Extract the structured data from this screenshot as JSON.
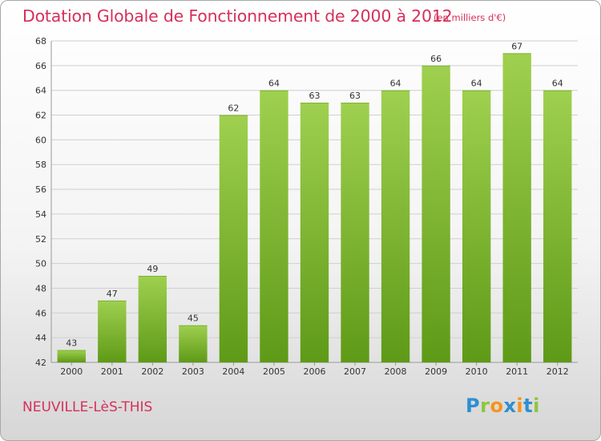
{
  "title": "Dotation Globale de Fonctionnement de 2000 à 2012",
  "unit_note": "(en milliers d'€)",
  "commune": "NEUVILLE-LèS-THIS",
  "logo": {
    "text": "Proxiti",
    "letters": [
      {
        "ch": "P",
        "color": "#2e8fd0"
      },
      {
        "ch": "r",
        "color": "#8cc63f"
      },
      {
        "ch": "o",
        "color": "#f7941d"
      },
      {
        "ch": "x",
        "color": "#2e8fd0"
      },
      {
        "ch": "i",
        "color": "#f7941d"
      },
      {
        "ch": "t",
        "color": "#2e8fd0"
      },
      {
        "ch": "i",
        "color": "#8cc63f"
      }
    ]
  },
  "colors": {
    "accent": "#d6305a",
    "bar_top": "#9fd04f",
    "bar_bottom": "#5e9a17",
    "grid": "#d0d0d0"
  },
  "chart_data": {
    "type": "bar",
    "title": "Dotation Globale de Fonctionnement de 2000 à 2012",
    "subtitle": "(en milliers d'€)",
    "xlabel": "",
    "ylabel": "",
    "categories": [
      "2000",
      "2001",
      "2002",
      "2003",
      "2004",
      "2005",
      "2006",
      "2007",
      "2008",
      "2009",
      "2010",
      "2011",
      "2012"
    ],
    "values": [
      43,
      47,
      49,
      45,
      62,
      64,
      63,
      63,
      64,
      66,
      64,
      67,
      64
    ],
    "ylim": [
      42,
      68
    ],
    "yticks": [
      42,
      44,
      46,
      48,
      50,
      52,
      54,
      56,
      58,
      60,
      62,
      64,
      66,
      68
    ],
    "grid": true,
    "legend": "none",
    "data_labels": true
  }
}
